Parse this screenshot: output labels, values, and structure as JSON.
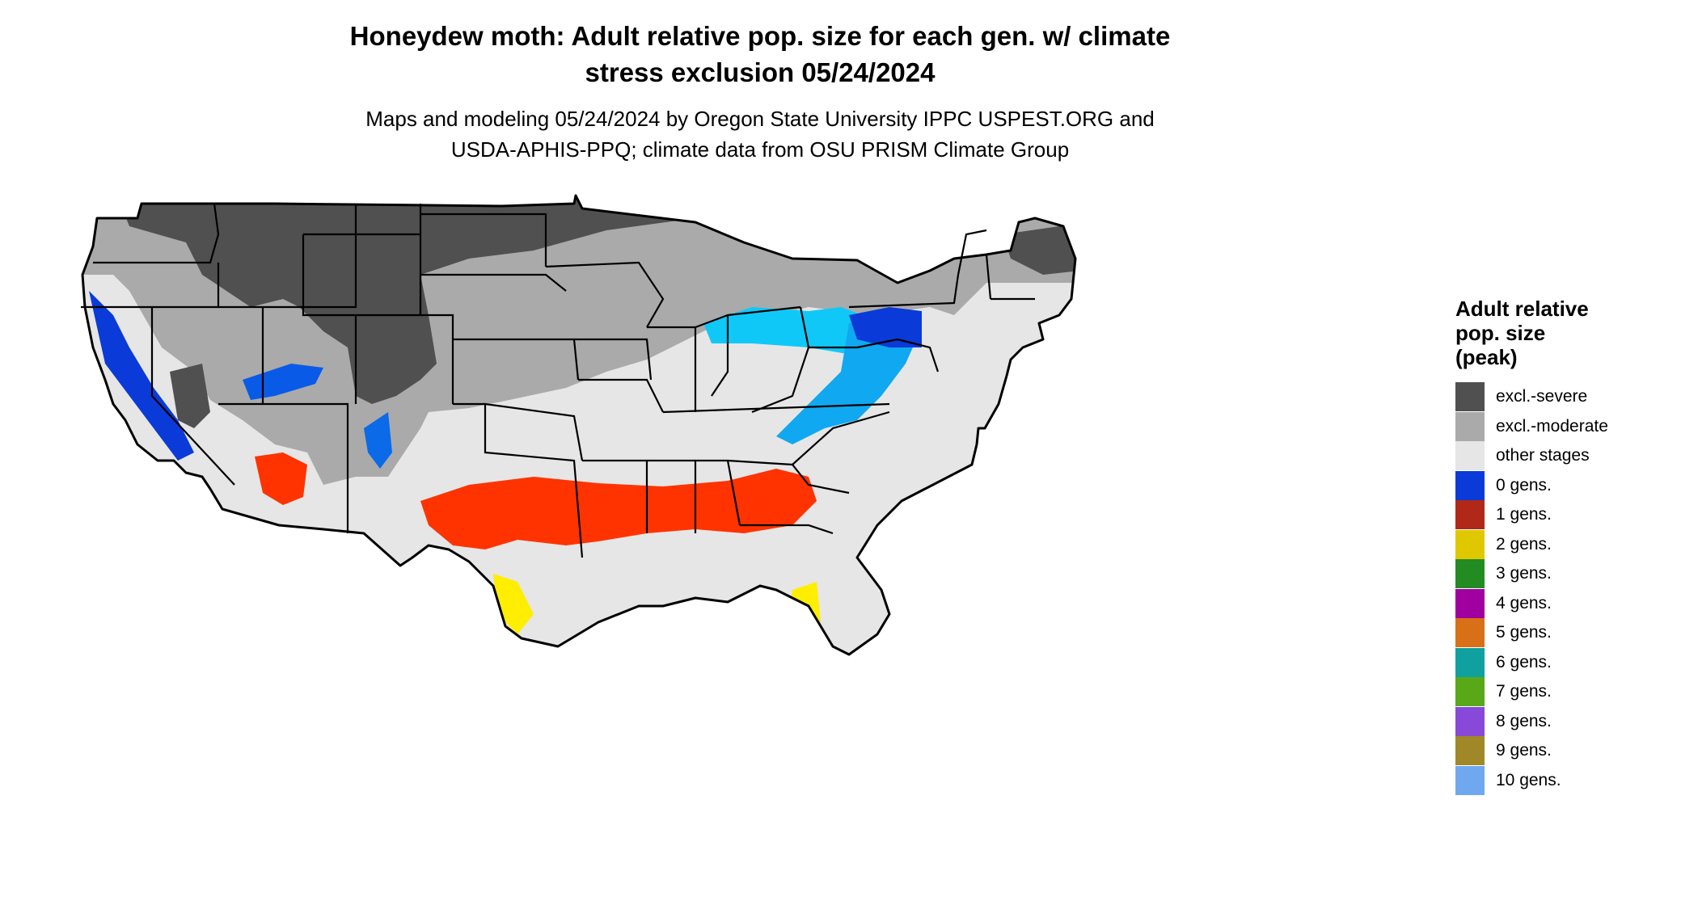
{
  "title_line1": "Honeydew moth: Adult relative pop. size for each gen. w/ climate",
  "title_line2": "stress exclusion 05/24/2024",
  "subtitle_line1": "Maps and modeling 05/24/2024 by Oregon State University IPPC USPEST.ORG and",
  "subtitle_line2": "USDA-APHIS-PPQ; climate data from OSU PRISM Climate Group",
  "legend": {
    "title_line1": "Adult relative",
    "title_line2": "pop. size",
    "title_line3": "(peak)",
    "items": [
      {
        "label": "excl.-severe",
        "color": "#505050"
      },
      {
        "label": "excl.-moderate",
        "color": "#aaaaaa"
      },
      {
        "label": "other stages",
        "color": "#e6e6e6"
      },
      {
        "label": "0 gens.",
        "color": "#0a3ad8"
      },
      {
        "label": "1 gens.",
        "color": "#b02818"
      },
      {
        "label": "2 gens.",
        "color": "#e0c800"
      },
      {
        "label": "3 gens.",
        "color": "#228b22"
      },
      {
        "label": "4 gens.",
        "color": "#a000a0"
      },
      {
        "label": "5 gens.",
        "color": "#d87018"
      },
      {
        "label": "6 gens.",
        "color": "#10a0a0"
      },
      {
        "label": "7 gens.",
        "color": "#58a818"
      },
      {
        "label": "8 gens.",
        "color": "#8848d8"
      },
      {
        "label": "9 gens.",
        "color": "#a08828"
      },
      {
        "label": "10 gens.",
        "color": "#70a8f0"
      }
    ]
  }
}
